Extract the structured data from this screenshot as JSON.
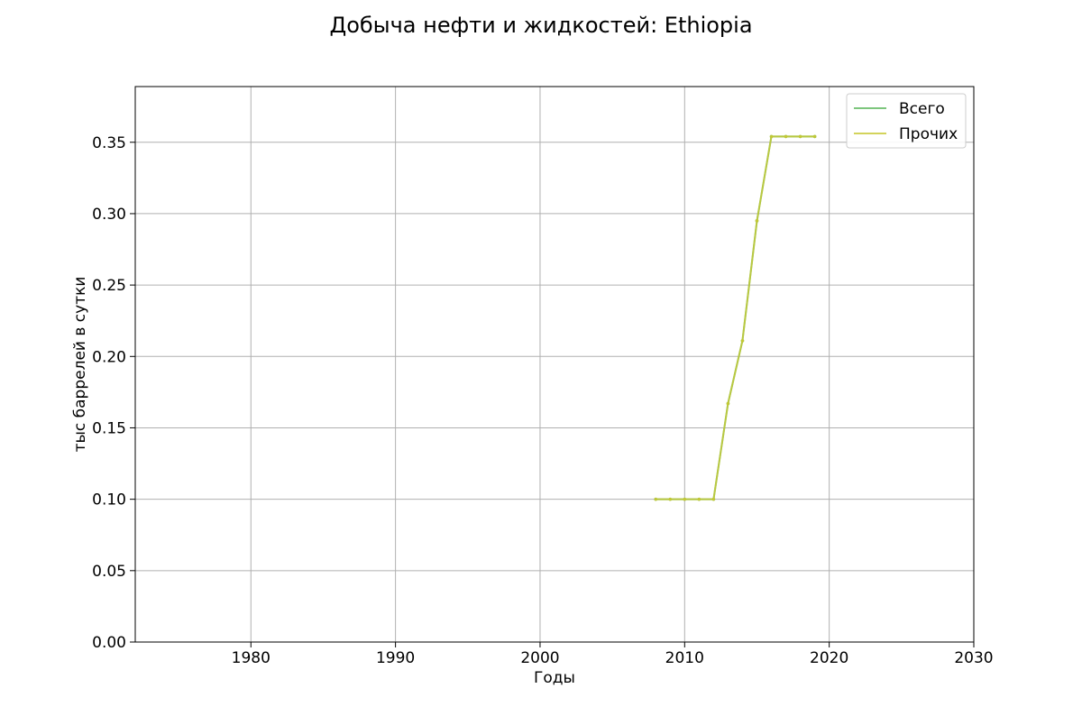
{
  "chart_data": {
    "type": "line",
    "title": "Добыча нефти и жидкостей: Ethiopia",
    "xlabel": "Годы",
    "ylabel": "тыс баррелей в сутки",
    "xlim": [
      1972,
      2030
    ],
    "ylim": [
      0,
      0.389
    ],
    "x_ticks": [
      1980,
      1990,
      2000,
      2010,
      2020,
      2030
    ],
    "x_tick_labels": [
      "1980",
      "1990",
      "2000",
      "2010",
      "2020",
      "2030"
    ],
    "y_ticks": [
      0,
      0.05,
      0.1,
      0.15,
      0.2,
      0.25,
      0.3,
      0.35
    ],
    "y_tick_labels": [
      "0.00",
      "0.05",
      "0.10",
      "0.15",
      "0.20",
      "0.25",
      "0.30",
      "0.35"
    ],
    "grid": true,
    "legend_position": "top-right",
    "x": [
      2008,
      2009,
      2010,
      2011,
      2012,
      2013,
      2014,
      2015,
      2016,
      2017,
      2018,
      2019
    ],
    "series": [
      {
        "name": "Всего",
        "color": "#5cb85c",
        "values": [
          0.1,
          0.1,
          0.1,
          0.1,
          0.1,
          0.167,
          0.211,
          0.295,
          0.354,
          0.354,
          0.354,
          0.354
        ]
      },
      {
        "name": "Прочих",
        "color": "#c8c832",
        "values": [
          0.1,
          0.1,
          0.1,
          0.1,
          0.1,
          0.167,
          0.211,
          0.295,
          0.354,
          0.354,
          0.354,
          0.354
        ]
      }
    ]
  }
}
